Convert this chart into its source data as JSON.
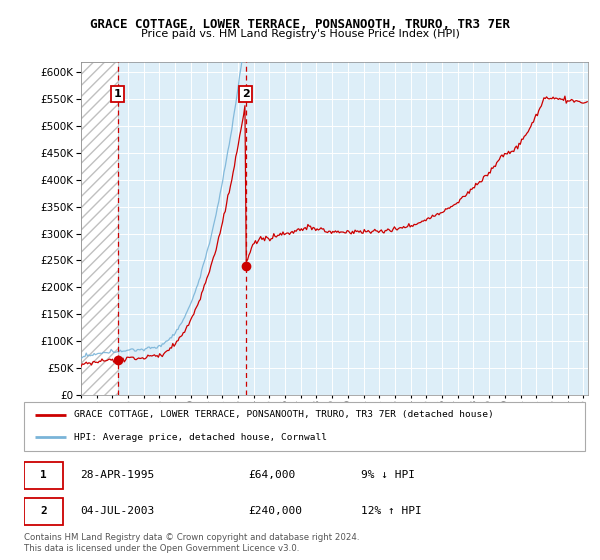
{
  "title": "GRACE COTTAGE, LOWER TERRACE, PONSANOOTH, TRURO, TR3 7ER",
  "subtitle": "Price paid vs. HM Land Registry's House Price Index (HPI)",
  "legend_line1": "GRACE COTTAGE, LOWER TERRACE, PONSANOOTH, TRURO, TR3 7ER (detached house)",
  "legend_line2": "HPI: Average price, detached house, Cornwall",
  "transaction1_date": "28-APR-1995",
  "transaction1_price": "£64,000",
  "transaction1_hpi": "9% ↓ HPI",
  "transaction2_date": "04-JUL-2003",
  "transaction2_price": "£240,000",
  "transaction2_hpi": "12% ↑ HPI",
  "footer": "Contains HM Land Registry data © Crown copyright and database right 2024.\nThis data is licensed under the Open Government Licence v3.0.",
  "hpi_color": "#7ab4d8",
  "price_color": "#cc0000",
  "marker_color": "#cc0000",
  "vline_color": "#cc0000",
  "ylim_min": 0,
  "ylim_max": 620000,
  "transaction1_year": 1995.33,
  "transaction2_year": 2003.5,
  "transaction1_value": 64000,
  "transaction2_value": 240000,
  "xmin": 1993,
  "xmax": 2025.3
}
